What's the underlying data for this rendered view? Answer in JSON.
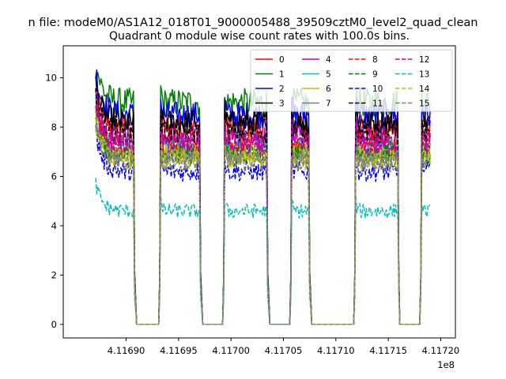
{
  "suptitle": "n file: modeM0/AS1A12_018T01_9000005488_39509cztM0_level2_quad_clean",
  "chart_data": {
    "type": "line",
    "title": "Quadrant 0 module wise count rates with 100.0s bins.",
    "xlabel": "",
    "ylabel": "",
    "x_offset_label": "1e8",
    "x_scale": 100000000,
    "xlim": [
      4.11684,
      4.117214
    ],
    "ylim": [
      -0.55,
      11.3
    ],
    "x_ticks": [
      4.1169,
      4.11695,
      4.117,
      4.11705,
      4.1171,
      4.11715,
      4.1172
    ],
    "x_tick_labels": [
      "4.11690",
      "4.11695",
      "4.11700",
      "4.11705",
      "4.11710",
      "4.11715",
      "4.11720"
    ],
    "y_ticks": [
      0,
      2,
      4,
      6,
      8,
      10
    ],
    "y_tick_labels": [
      "0",
      "2",
      "4",
      "6",
      "8",
      "10"
    ],
    "grid": false,
    "legend": {
      "location": "top-right",
      "columns": 4
    },
    "segments_x": [
      [
        4.116871,
        4.116908
      ],
      [
        4.116932,
        4.116971
      ],
      [
        4.116993,
        4.117035
      ],
      [
        4.117057,
        4.117075
      ],
      [
        4.117118,
        4.11716
      ],
      [
        4.117181,
        4.11719
      ]
    ],
    "zero_segments_x": [
      [
        4.11691,
        4.116931
      ],
      [
        4.116973,
        4.116992
      ],
      [
        4.117037,
        4.117056
      ],
      [
        4.117077,
        4.117117
      ],
      [
        4.117161,
        4.11718
      ]
    ],
    "series": [
      {
        "name": "0",
        "color": "#ff0000",
        "dash": "solid",
        "level": 8.0,
        "start": 9.4
      },
      {
        "name": "1",
        "color": "#008000",
        "dash": "solid",
        "level": 9.0,
        "start": 10.7
      },
      {
        "name": "2",
        "color": "#0000ff",
        "dash": "solid",
        "level": 8.5,
        "start": 10.3
      },
      {
        "name": "3",
        "color": "#000000",
        "dash": "solid",
        "level": 8.2,
        "start": 9.7
      },
      {
        "name": "4",
        "color": "#bf00bf",
        "dash": "solid",
        "level": 7.6,
        "start": 9.2
      },
      {
        "name": "5",
        "color": "#00bfbf",
        "dash": "solid",
        "level": 7.2,
        "start": 8.8
      },
      {
        "name": "6",
        "color": "#bfbf00",
        "dash": "solid",
        "level": 7.0,
        "start": 8.5
      },
      {
        "name": "7",
        "color": "#808080",
        "dash": "solid",
        "level": 6.8,
        "start": 8.3
      },
      {
        "name": "8",
        "color": "#ff0000",
        "dash": "dashed",
        "level": 7.4,
        "start": 9.0
      },
      {
        "name": "9",
        "color": "#008000",
        "dash": "dashed",
        "level": 6.9,
        "start": 8.4
      },
      {
        "name": "10",
        "color": "#0000ff",
        "dash": "dashed",
        "level": 6.2,
        "start": 7.8
      },
      {
        "name": "11",
        "color": "#000000",
        "dash": "dashed",
        "level": 7.8,
        "start": 9.3
      },
      {
        "name": "12",
        "color": "#bf00bf",
        "dash": "dashed",
        "level": 7.3,
        "start": 8.9
      },
      {
        "name": "13",
        "color": "#00bfbf",
        "dash": "dashed",
        "level": 4.6,
        "start": 5.7
      },
      {
        "name": "14",
        "color": "#bfbf00",
        "dash": "dashed",
        "level": 6.7,
        "start": 8.2
      },
      {
        "name": "15",
        "color": "#808080",
        "dash": "dashed",
        "level": 6.6,
        "start": 7.9
      }
    ]
  }
}
